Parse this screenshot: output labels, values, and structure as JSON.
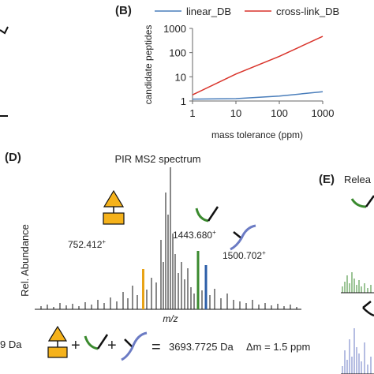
{
  "panel_b": {
    "label": "(B)",
    "chart_data": {
      "type": "line",
      "x": [
        1,
        10,
        100,
        1000
      ],
      "xlabel": "mass tolerance (ppm)",
      "ylabel": "candidate peptides",
      "x_scale": "log",
      "y_scale": "log",
      "xlim": [
        1,
        1000
      ],
      "ylim": [
        1,
        1000
      ],
      "x_ticks": [
        "1",
        "10",
        "100",
        "1000"
      ],
      "y_ticks": [
        "1",
        "10",
        "100",
        "1000"
      ],
      "grid": false,
      "legend": "top",
      "series": [
        {
          "name": "linear_DB",
          "color": "#4a7ebb",
          "values": [
            1.2,
            1.25,
            1.6,
            2.4
          ]
        },
        {
          "name": "cross-link_DB",
          "color": "#d9342b",
          "values": [
            1.8,
            13,
            70,
            470
          ]
        }
      ]
    }
  },
  "panel_d": {
    "label": "(D)",
    "title": "PIR MS2 spectrum",
    "ylabel": "Rel. Abundance",
    "xlabel": "m/z",
    "peaks": [
      {
        "label": "752.412",
        "sup": "+",
        "color": "#e8a317",
        "height": 0.55
      },
      {
        "label": "1443.680",
        "sup": "+",
        "color": "#3a8a2e",
        "height": 0.62
      },
      {
        "label": "1500.702",
        "sup": "+",
        "color": "#2b5ea8",
        "height": 0.42
      }
    ],
    "equation": {
      "left_partial": "9 Da",
      "plus": "+",
      "equals": "=",
      "mass": "3693.7725 Da",
      "delta": "Δm = 1.5 ppm"
    }
  },
  "panel_e": {
    "label": "(E)",
    "title_partial": "Relea"
  },
  "colors": {
    "reporter": "#f5b21b",
    "green_peptide": "#3a8a2e",
    "blue_peptide": "#6b7bc4",
    "spectrum": "#111111"
  }
}
